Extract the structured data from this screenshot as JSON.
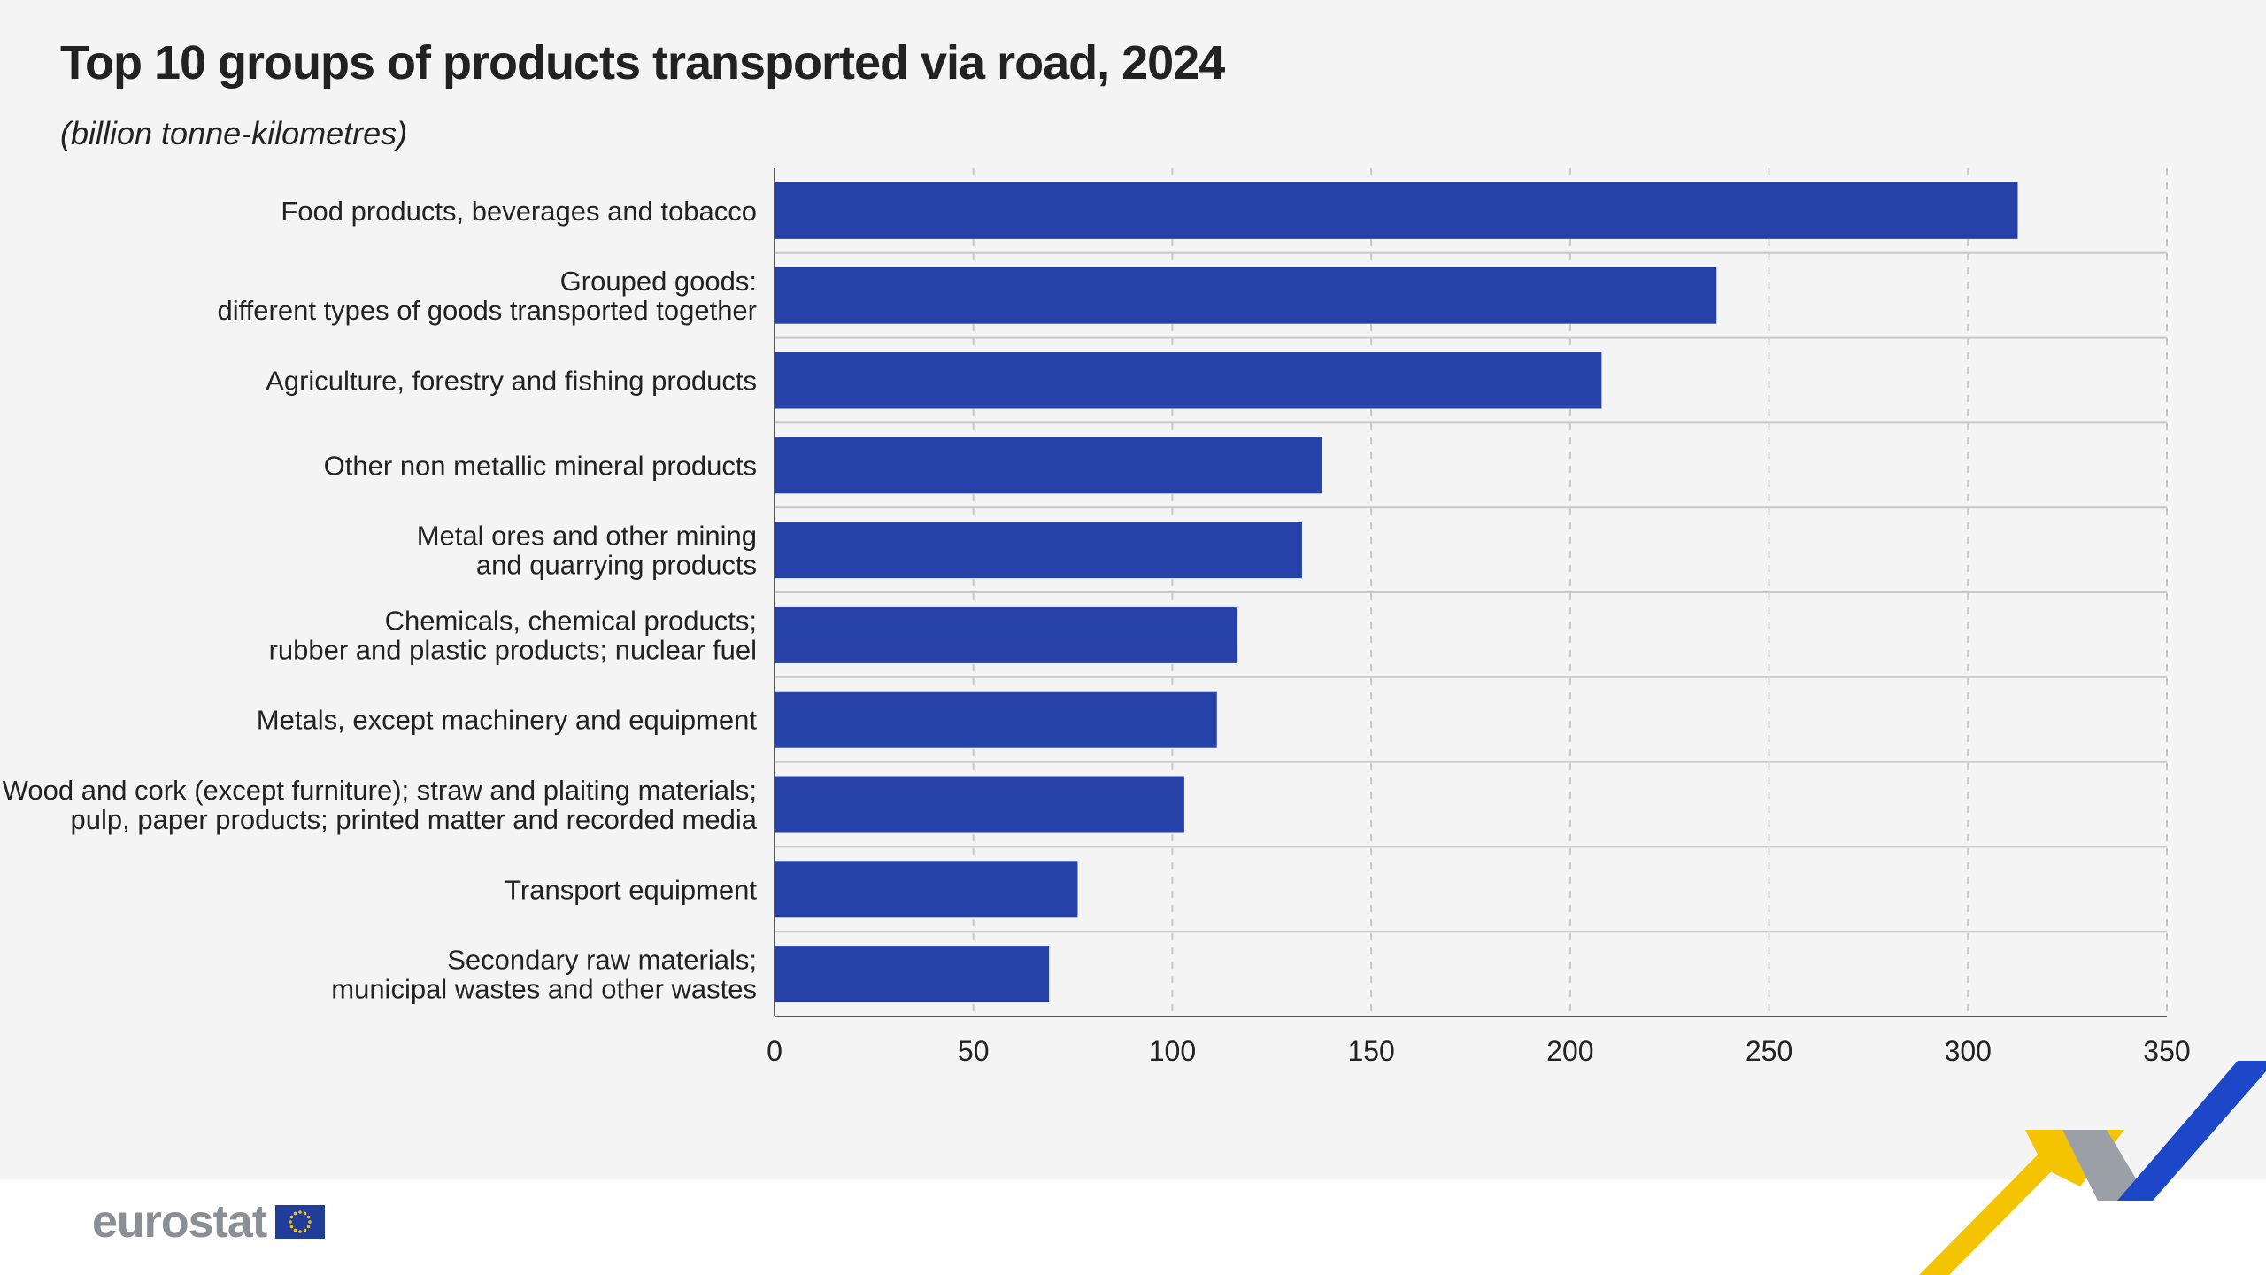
{
  "header": {
    "title": "Top 10 groups of products transported via road, 2024",
    "subtitle": "(billion tonne-kilometres)"
  },
  "footer": {
    "logo_text": "eurostat"
  },
  "colors": {
    "bar": "#2642a8",
    "background": "#f4f4f4",
    "grid": "#c8c8c8",
    "deco_yellow": "#f5c400",
    "deco_grey": "#9aa0a6",
    "deco_blue": "#1d47c9"
  },
  "chart_data": {
    "type": "bar",
    "orientation": "horizontal",
    "categories": [
      [
        "Food products, beverages and tobacco"
      ],
      [
        "Grouped goods:",
        "different types of goods transported together"
      ],
      [
        "Agriculture, forestry and fishing products"
      ],
      [
        "Other non metallic mineral products"
      ],
      [
        "Metal ores and other mining",
        "and quarrying products"
      ],
      [
        "Chemicals, chemical products;",
        "rubber and plastic products; nuclear fuel"
      ],
      [
        "Metals, except machinery and equipment"
      ],
      [
        "Wood and cork (except furniture); straw and plaiting materials;",
        "pulp, paper products; printed matter and recorded media"
      ],
      [
        "Transport equipment"
      ],
      [
        "Secondary raw materials;",
        "municipal wastes and other wastes"
      ]
    ],
    "values": [
      312.5,
      236.8,
      207.9,
      137.5,
      132.6,
      116.4,
      111.2,
      103.0,
      76.2,
      69.0
    ],
    "xlim": [
      0,
      350
    ],
    "xticks": [
      "0",
      "50",
      "100",
      "150",
      "200",
      "250",
      "300",
      "350"
    ],
    "grid": true
  }
}
